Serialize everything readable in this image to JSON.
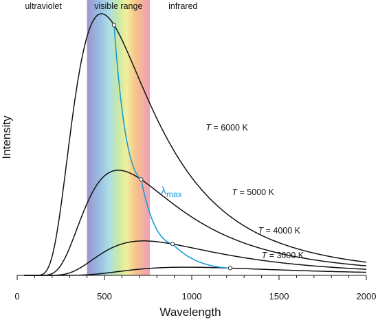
{
  "chart_data": {
    "type": "line",
    "xlabel": "Wavelength",
    "ylabel": "Intensity",
    "xlim": [
      0,
      2000
    ],
    "x_ticks": [
      0,
      500,
      1000,
      1500,
      2000
    ],
    "x_minor_step": 100,
    "regions": [
      {
        "label": "ultraviolet",
        "x_center": 150
      },
      {
        "label": "visible range",
        "x_range": [
          400,
          760
        ]
      },
      {
        "label": "infrared",
        "x_center": 950
      }
    ],
    "series": [
      {
        "name": "T = 6000 K",
        "temperature": 6000,
        "peak_x": 555,
        "label_x": 1080
      },
      {
        "name": "T = 5000 K",
        "temperature": 5000,
        "peak_x": 710,
        "label_x": 1230
      },
      {
        "name": "T = 4000 K",
        "temperature": 4000,
        "peak_x": 890,
        "label_x": 1380
      },
      {
        "name": "T = 3000 K",
        "temperature": 3000,
        "peak_x": 1220,
        "label_x": 1400
      }
    ],
    "annotation": {
      "text": "λ",
      "subscript": "max",
      "color": "#1a9ad6"
    },
    "grid": false,
    "legend": "none"
  }
}
